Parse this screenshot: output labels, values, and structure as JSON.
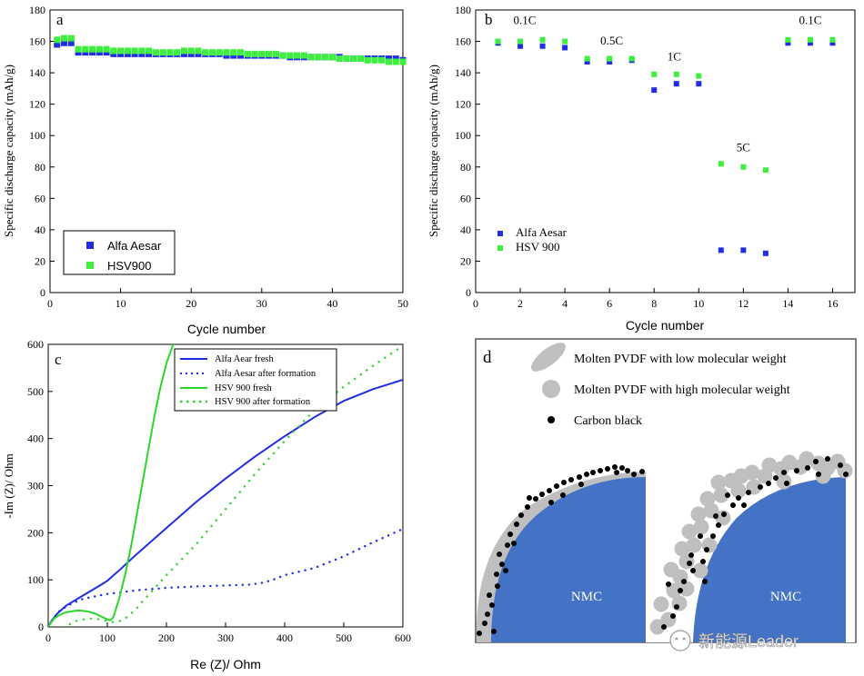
{
  "panel_letters": {
    "a": "a",
    "b": "b",
    "c": "c",
    "d": "d"
  },
  "colors": {
    "blue": "#1f2ee6",
    "green": "#2ad82a",
    "green_marker": "#3cf03c",
    "nmc": "#4472c4",
    "pvdf": "#bfbfbf",
    "carbon": "#000000"
  },
  "chart_data": [
    {
      "panel": "a",
      "type": "scatter",
      "xlabel": "Cycle number",
      "ylabel": "Specific discharge capacity (mAh/g)",
      "xlim": [
        0,
        50
      ],
      "ylim": [
        0,
        180
      ],
      "xticks": [
        "0",
        "10",
        "20",
        "30",
        "40",
        "50"
      ],
      "yticks": [
        "0",
        "20",
        "40",
        "60",
        "80",
        "100",
        "120",
        "140",
        "160",
        "180"
      ],
      "legend": [
        "Alfa Aesar",
        "HSV900"
      ],
      "series": [
        {
          "name": "Alfa Aesar",
          "x": [
            1,
            2,
            3,
            4,
            5,
            6,
            7,
            8,
            9,
            10,
            11,
            12,
            13,
            14,
            15,
            16,
            17,
            18,
            19,
            20,
            21,
            22,
            23,
            24,
            25,
            26,
            27,
            28,
            29,
            30,
            31,
            32,
            33,
            34,
            35,
            36,
            37,
            38,
            39,
            40,
            41,
            42,
            43,
            44,
            45,
            46,
            47,
            48,
            49,
            50
          ],
          "y": [
            158,
            159,
            159,
            153,
            153,
            153,
            153,
            153,
            152,
            152,
            152,
            152,
            152,
            152,
            152,
            152,
            152,
            152,
            152,
            152,
            152,
            152,
            152,
            152,
            151,
            151,
            151,
            151,
            151,
            151,
            151,
            151,
            151,
            150,
            150,
            150,
            150,
            150,
            150,
            150,
            150,
            149,
            149,
            149,
            149,
            149,
            149,
            149,
            149,
            148
          ]
        },
        {
          "name": "HSV900",
          "x": [
            1,
            2,
            3,
            4,
            5,
            6,
            7,
            8,
            9,
            10,
            11,
            12,
            13,
            14,
            15,
            16,
            17,
            18,
            19,
            20,
            21,
            22,
            23,
            24,
            25,
            26,
            27,
            28,
            29,
            30,
            31,
            32,
            33,
            34,
            35,
            36,
            37,
            38,
            39,
            40,
            41,
            42,
            43,
            44,
            45,
            46,
            47,
            48,
            49,
            50
          ],
          "y": [
            161,
            162,
            162,
            155,
            155,
            155,
            155,
            155,
            154,
            154,
            154,
            154,
            154,
            154,
            153,
            153,
            153,
            153,
            154,
            154,
            154,
            153,
            153,
            153,
            153,
            153,
            153,
            152,
            152,
            152,
            152,
            152,
            151,
            151,
            151,
            151,
            150,
            150,
            150,
            150,
            149,
            149,
            149,
            149,
            148,
            148,
            148,
            147,
            147,
            147
          ]
        }
      ]
    },
    {
      "panel": "b",
      "type": "scatter",
      "xlabel": "Cycle number",
      "ylabel": "Specific discharge capacity (mAh/g)",
      "xlim": [
        0,
        17
      ],
      "ylim": [
        0,
        180
      ],
      "xticks": [
        "0",
        "2",
        "4",
        "6",
        "8",
        "10",
        "12",
        "14",
        "16"
      ],
      "yticks": [
        "0",
        "20",
        "40",
        "60",
        "80",
        "100",
        "120",
        "140",
        "160",
        "180"
      ],
      "legend": [
        "Alfa Aesar",
        "HSV 900"
      ],
      "annotations": [
        {
          "text": "0.1C",
          "x": 2.2,
          "y": 171
        },
        {
          "text": "0.5C",
          "x": 6.1,
          "y": 158
        },
        {
          "text": "1C",
          "x": 8.9,
          "y": 148
        },
        {
          "text": "5C",
          "x": 12.0,
          "y": 90
        },
        {
          "text": "0.1C",
          "x": 15.0,
          "y": 171
        }
      ],
      "series": [
        {
          "name": "Alfa Aesar",
          "x": [
            1,
            2,
            3,
            4,
            5,
            6,
            7,
            8,
            9,
            10,
            11,
            12,
            13,
            14,
            15,
            16
          ],
          "y": [
            159,
            157,
            157,
            156,
            147,
            147,
            148,
            129,
            133,
            133,
            27,
            27,
            25,
            159,
            159,
            159
          ]
        },
        {
          "name": "HSV 900",
          "x": [
            1,
            2,
            3,
            4,
            5,
            6,
            7,
            8,
            9,
            10,
            11,
            12,
            13,
            14,
            15,
            16
          ],
          "y": [
            160,
            160,
            161,
            160,
            149,
            149,
            149,
            139,
            139,
            138,
            82,
            80,
            78,
            161,
            161,
            161
          ]
        }
      ]
    },
    {
      "panel": "c",
      "type": "line",
      "xlabel": "Re (Z)/ Ohm",
      "ylabel": "-Im (Z)/ Ohm",
      "xlim": [
        0,
        600
      ],
      "ylim": [
        0,
        600
      ],
      "xticks": [
        "0",
        "100",
        "200",
        "300",
        "400",
        "500",
        "600"
      ],
      "yticks": [
        "0",
        "100",
        "200",
        "300",
        "400",
        "500",
        "600"
      ],
      "legend": [
        "Alfa Aear fresh",
        "Alfa Aesar after formation",
        "HSV 900 fresh",
        "HSV 900 after formation"
      ],
      "series": [
        {
          "name": "Alfa Aear fresh",
          "style": "solid",
          "color": "blue",
          "x": [
            0,
            5,
            15,
            30,
            50,
            70,
            90,
            100,
            120,
            150,
            200,
            250,
            300,
            350,
            400,
            450,
            500,
            550,
            600
          ],
          "y": [
            0,
            12,
            28,
            45,
            60,
            75,
            90,
            98,
            120,
            155,
            210,
            265,
            315,
            362,
            405,
            445,
            480,
            505,
            525
          ]
        },
        {
          "name": "Alfa Aesar after formation",
          "style": "dotted",
          "color": "blue",
          "x": [
            0,
            10,
            20,
            40,
            60,
            80,
            100,
            120,
            150,
            200,
            250,
            300,
            340,
            360,
            380,
            400,
            450,
            500,
            550,
            600
          ],
          "y": [
            0,
            20,
            35,
            50,
            60,
            65,
            70,
            73,
            78,
            83,
            86,
            88,
            90,
            93,
            100,
            110,
            125,
            150,
            180,
            208
          ]
        },
        {
          "name": "HSV 900 fresh",
          "style": "solid",
          "color": "green",
          "x": [
            0,
            5,
            10,
            20,
            30,
            40,
            50,
            60,
            70,
            80,
            90,
            100,
            105,
            110,
            120,
            130,
            140,
            150,
            160,
            170,
            180,
            190,
            200,
            210,
            214
          ],
          "y": [
            0,
            10,
            18,
            26,
            31,
            33,
            35,
            34,
            32,
            28,
            22,
            16,
            14,
            20,
            60,
            110,
            170,
            240,
            310,
            380,
            450,
            510,
            560,
            595,
            605
          ]
        },
        {
          "name": "HSV 900 after formation",
          "style": "dotted",
          "color": "green",
          "x": [
            25,
            30,
            35,
            40,
            50,
            70,
            90,
            100,
            110,
            120,
            130,
            140,
            150,
            160,
            175,
            200,
            250,
            300,
            350,
            400,
            450,
            500,
            550,
            600
          ],
          "y": [
            0,
            2,
            5,
            8,
            14,
            18,
            16,
            12,
            10,
            12,
            18,
            28,
            40,
            55,
            75,
            110,
            175,
            250,
            325,
            395,
            460,
            510,
            555,
            597
          ]
        }
      ]
    }
  ],
  "panel_d": {
    "legend": [
      {
        "kind": "low",
        "label": "Molten PVDF with low molecular weight"
      },
      {
        "kind": "high",
        "label": "Molten PVDF with high molecular weight"
      },
      {
        "kind": "carbon",
        "label": "Carbon black"
      }
    ],
    "particle_label": "NMC"
  },
  "watermark": {
    "text": "新能源Leader"
  }
}
